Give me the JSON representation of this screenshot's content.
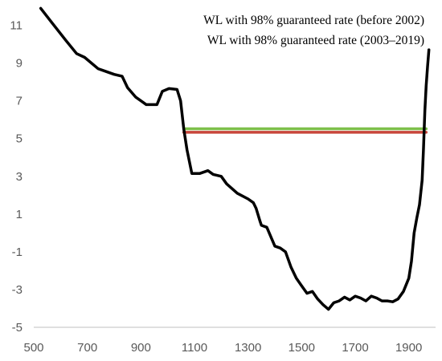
{
  "chart_data": {
    "type": "line",
    "title": "",
    "xlabel": "",
    "ylabel": "",
    "xlim": [
      500,
      2000
    ],
    "ylim": [
      -5,
      12
    ],
    "x_ticks": [
      500,
      700,
      900,
      1100,
      1300,
      1500,
      1700,
      1900
    ],
    "x_tick_labels": [
      "500",
      "700",
      "900",
      "1100",
      "1300",
      "1500",
      "1700",
      "1900"
    ],
    "y_ticks": [
      11,
      9,
      7,
      5,
      3,
      1,
      -1,
      -3,
      -5
    ],
    "y_tick_labels": [
      "11",
      "9",
      "7",
      "5",
      "3",
      "1",
      "-1",
      "-3",
      "-5"
    ],
    "grid": false,
    "legend_position": "top-right",
    "series": [
      {
        "name": "",
        "color": "#000000",
        "kind": "profile",
        "x": [
          526,
          570,
          620,
          660,
          690,
          740,
          800,
          830,
          850,
          880,
          920,
          960,
          980,
          1005,
          1035,
          1048,
          1060,
          1072,
          1090,
          1120,
          1150,
          1170,
          1200,
          1220,
          1260,
          1300,
          1320,
          1330,
          1345,
          1350,
          1370,
          1400,
          1420,
          1440,
          1460,
          1480,
          1500,
          1520,
          1540,
          1560,
          1580,
          1600,
          1620,
          1640,
          1660,
          1680,
          1700,
          1720,
          1740,
          1760,
          1780,
          1800,
          1820,
          1840,
          1860,
          1880,
          1900,
          1910,
          1920,
          1930,
          1940,
          1950,
          1955,
          1960,
          1965,
          1970,
          1975
        ],
        "y": [
          11.9,
          11.1,
          10.2,
          9.5,
          9.3,
          8.7,
          8.4,
          8.3,
          7.7,
          7.2,
          6.8,
          6.8,
          7.5,
          7.65,
          7.6,
          7.0,
          5.5,
          4.4,
          3.15,
          3.15,
          3.3,
          3.1,
          3.0,
          2.6,
          2.1,
          1.8,
          1.6,
          1.3,
          0.6,
          0.4,
          0.3,
          -0.7,
          -0.8,
          -1.0,
          -1.8,
          -2.4,
          -2.8,
          -3.2,
          -3.1,
          -3.5,
          -3.8,
          -4.05,
          -3.7,
          -3.6,
          -3.4,
          -3.55,
          -3.35,
          -3.45,
          -3.6,
          -3.35,
          -3.45,
          -3.6,
          -3.6,
          -3.65,
          -3.5,
          -3.1,
          -2.4,
          -1.5,
          0.0,
          0.8,
          1.5,
          2.8,
          4.5,
          6.5,
          7.8,
          8.8,
          9.7
        ]
      },
      {
        "name": "WL with 98% guaranteed rate (before 2002)",
        "color": "#7DBF4A",
        "kind": "hline",
        "x": [
          1060,
          1965
        ],
        "y": [
          5.52,
          5.52
        ]
      },
      {
        "name": "WL with 98% guaranteed rate (2003–2019)",
        "color": "#C8463B",
        "kind": "hline",
        "x": [
          1060,
          1965
        ],
        "y": [
          5.33,
          5.33
        ]
      }
    ]
  }
}
